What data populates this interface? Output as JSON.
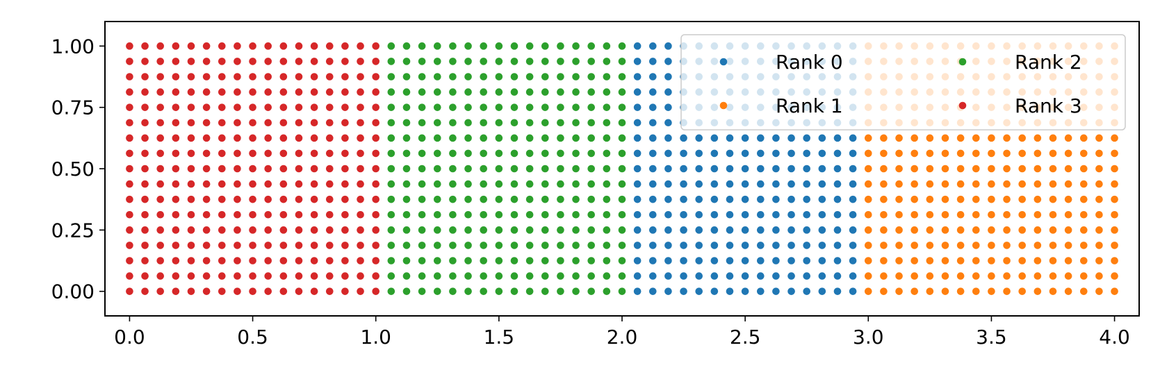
{
  "chart_data": {
    "type": "scatter",
    "title": "",
    "xlabel": "",
    "ylabel": "",
    "xlim": [
      -0.1,
      4.1
    ],
    "ylim": [
      -0.1,
      1.1
    ],
    "xticks": [
      "0.0",
      "0.5",
      "1.0",
      "1.5",
      "2.0",
      "2.5",
      "3.0",
      "3.5",
      "4.0"
    ],
    "yticks": [
      "0.00",
      "0.25",
      "0.50",
      "0.75",
      "1.00"
    ],
    "grid": false,
    "legend": {
      "placement": "upper-right",
      "columns": 2
    },
    "x_spacing": 0.0625,
    "y_spacing": 0.0625,
    "series": [
      {
        "name": "Rank 0",
        "color": "#1f77b4",
        "x_range": [
          2.0625,
          2.9375
        ],
        "y_range": [
          0.0,
          1.0
        ]
      },
      {
        "name": "Rank 1",
        "color": "#ff7f0e",
        "x_range": [
          3.0,
          4.0
        ],
        "y_range": [
          0.0,
          1.0
        ]
      },
      {
        "name": "Rank 2",
        "color": "#2ca02c",
        "x_range": [
          1.0625,
          2.0
        ],
        "y_range": [
          0.0,
          1.0
        ]
      },
      {
        "name": "Rank 3",
        "color": "#d62728",
        "x_range": [
          0.0,
          1.0
        ],
        "y_range": [
          0.0,
          1.0
        ]
      }
    ]
  }
}
